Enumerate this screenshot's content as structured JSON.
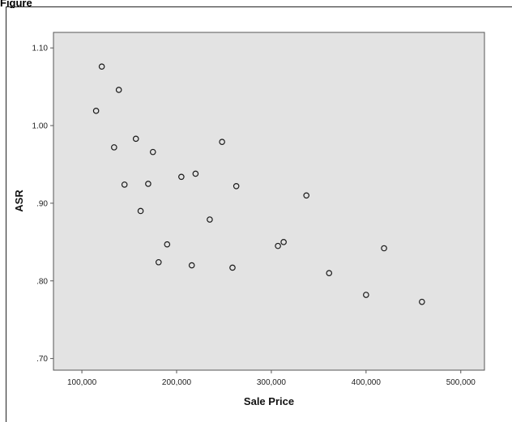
{
  "figure": {
    "label": "Figure"
  },
  "chart_data": {
    "type": "scatter",
    "xlabel": "Sale Price",
    "ylabel": "ASR",
    "xlim": [
      70000,
      525000
    ],
    "ylim": [
      0.685,
      1.12
    ],
    "xticks": [
      100000,
      200000,
      300000,
      400000,
      500000
    ],
    "xtick_labels": [
      "100,000",
      "200,000",
      "300,000",
      "400,000",
      "500,000"
    ],
    "yticks": [
      0.7,
      0.8,
      0.9,
      1.0,
      1.1
    ],
    "ytick_labels": [
      ".70",
      ".80",
      ".90",
      "1.00",
      "1.10"
    ],
    "grid": false,
    "plot_background": "#e3e3e3",
    "marker": "hollow-circle",
    "points": [
      {
        "x": 121000,
        "y": 1.076
      },
      {
        "x": 115000,
        "y": 1.019
      },
      {
        "x": 139000,
        "y": 1.046
      },
      {
        "x": 134000,
        "y": 0.972
      },
      {
        "x": 145000,
        "y": 0.924
      },
      {
        "x": 157000,
        "y": 0.983
      },
      {
        "x": 162000,
        "y": 0.89
      },
      {
        "x": 170000,
        "y": 0.925
      },
      {
        "x": 175000,
        "y": 0.966
      },
      {
        "x": 181000,
        "y": 0.824
      },
      {
        "x": 190000,
        "y": 0.847
      },
      {
        "x": 205000,
        "y": 0.934
      },
      {
        "x": 216000,
        "y": 0.82
      },
      {
        "x": 220000,
        "y": 0.938
      },
      {
        "x": 235000,
        "y": 0.879
      },
      {
        "x": 248000,
        "y": 0.979
      },
      {
        "x": 259000,
        "y": 0.817
      },
      {
        "x": 263000,
        "y": 0.922
      },
      {
        "x": 307000,
        "y": 0.845
      },
      {
        "x": 313000,
        "y": 0.85
      },
      {
        "x": 337000,
        "y": 0.91
      },
      {
        "x": 361000,
        "y": 0.81
      },
      {
        "x": 400000,
        "y": 0.782
      },
      {
        "x": 419000,
        "y": 0.842
      },
      {
        "x": 459000,
        "y": 0.773
      }
    ]
  }
}
